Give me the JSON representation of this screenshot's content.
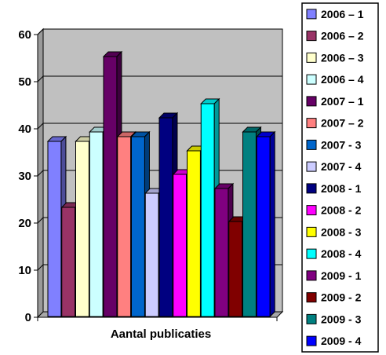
{
  "chart_data": {
    "type": "bar",
    "categories": [
      "Aantal publicaties"
    ],
    "xlabel": "Aantal publicaties",
    "ylabel": "",
    "title": "",
    "ylim": [
      0,
      60
    ],
    "yticks": [
      0,
      10,
      20,
      30,
      40,
      50,
      60
    ],
    "grid": true,
    "three_d": true,
    "plot_background": "#c0c0c0",
    "legend_position": "right",
    "series": [
      {
        "name": "2006 – 1",
        "values": [
          37
        ],
        "color": "#8080ff"
      },
      {
        "name": "2006 – 2",
        "values": [
          23
        ],
        "color": "#993366"
      },
      {
        "name": "2006 – 3",
        "values": [
          37
        ],
        "color": "#ffffcc"
      },
      {
        "name": "2006 – 4",
        "values": [
          39
        ],
        "color": "#ccffff"
      },
      {
        "name": "2007 – 1",
        "values": [
          55
        ],
        "color": "#660066"
      },
      {
        "name": "2007 – 2",
        "values": [
          38
        ],
        "color": "#ff8080"
      },
      {
        "name": "2007 - 3",
        "values": [
          38
        ],
        "color": "#0066cc"
      },
      {
        "name": "2007 - 4",
        "values": [
          26
        ],
        "color": "#ccccff"
      },
      {
        "name": "2008 - 1",
        "values": [
          42
        ],
        "color": "#000080"
      },
      {
        "name": "2008 - 2",
        "values": [
          30
        ],
        "color": "#ff00ff"
      },
      {
        "name": "2008 - 3",
        "values": [
          35
        ],
        "color": "#ffff00"
      },
      {
        "name": "2008 - 4",
        "values": [
          45
        ],
        "color": "#00ffff"
      },
      {
        "name": "2009 - 1",
        "values": [
          27
        ],
        "color": "#800080"
      },
      {
        "name": "2009 - 2",
        "values": [
          20
        ],
        "color": "#800000"
      },
      {
        "name": "2009 - 3",
        "values": [
          39
        ],
        "color": "#008080"
      },
      {
        "name": "2009 - 4",
        "values": [
          38
        ],
        "color": "#0000ff"
      }
    ]
  }
}
